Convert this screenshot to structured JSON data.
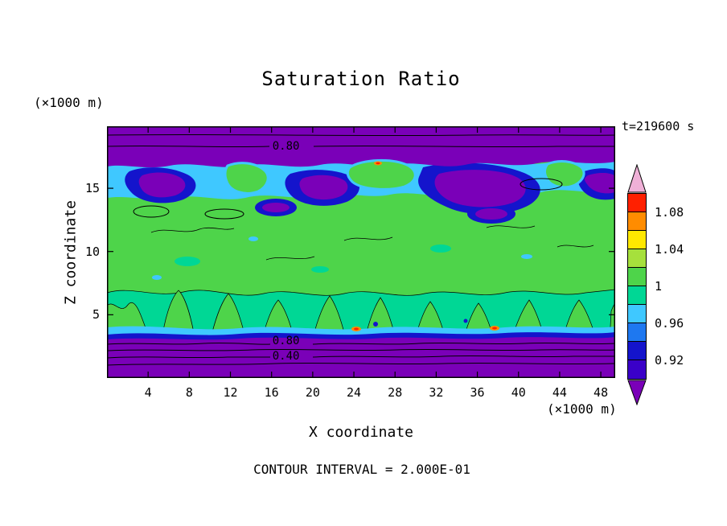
{
  "chart_data": {
    "type": "heatmap",
    "style": "filled-contour",
    "title": "Saturation Ratio",
    "annotation_time": "t=219600 s",
    "xlabel": "X coordinate",
    "ylabel": "Z coordinate",
    "x_axis_unit": "(×1000 m)",
    "y_axis_unit": "(×1000 m)",
    "footer_note": "CONTOUR INTERVAL = 2.000E-01",
    "contour_interval": 0.2,
    "xlim": [
      0,
      49.4
    ],
    "ylim": [
      0,
      19.9
    ],
    "x_ticks": [
      4,
      8,
      12,
      16,
      20,
      24,
      28,
      32,
      36,
      40,
      44,
      48
    ],
    "y_ticks": [
      5,
      10,
      15
    ],
    "grid": false,
    "legend_position": "right-colorbar",
    "contour_labels": [
      {
        "text": "0.80",
        "x": 17.4,
        "z": 18.3
      },
      {
        "text": "0.80",
        "x": 17.4,
        "z": 2.9
      },
      {
        "text": "0.40",
        "x": 17.4,
        "z": 1.7
      }
    ],
    "colorbar": {
      "range": [
        0.9,
        1.1
      ],
      "boundary_step": 0.02,
      "ticks": [
        {
          "label": "1.08",
          "boundary_index": 1
        },
        {
          "label": "1.04",
          "boundary_index": 3
        },
        {
          "label": "1",
          "boundary_index": 5
        },
        {
          "label": "0.96",
          "boundary_index": 7
        },
        {
          "label": "0.92",
          "boundary_index": 9
        }
      ],
      "segments_top_to_bottom": [
        "#ff2000",
        "#ff8c00",
        "#ffe800",
        "#a6e03c",
        "#4ed44a",
        "#00d795",
        "#3fc8ff",
        "#1e78f0",
        "#1414cc",
        "#3a00c8"
      ],
      "over_color": "#efb0d7",
      "under_color": "#7a00b8"
    },
    "palette": {
      "purple": "#7a00b8",
      "navy": "#1414cc",
      "cyan": "#3fc8ff",
      "teal_green": "#00d795",
      "green": "#4ed44a",
      "orange": "#ff8c00",
      "red": "#ff2000"
    },
    "field_summary": {
      "background_value": "≈ 1.0 (green) over most of the interior",
      "layers_bottom_to_top": [
        {
          "z_range_km": [
            0,
            3.2
          ],
          "description": "sub-saturated surface layer (purple), saturation ratio falls below 0.8 then 0.4; wavy labelled contours 0.80 and 0.40"
        },
        {
          "z_range_km": [
            3.2,
            13.5
          ],
          "description": "near-saturated interior ≈ 0.98–1.02: green field with teal plume gaps, rising finger structures, occasional cyan flecks, tiny navy dots and orange/red specks near z≈4"
        },
        {
          "z_range_km": [
            13.5,
            17
          ],
          "description": "turbulent cloud-top band: cyan, dark blue and purple patches (0.86–0.96) mixed with green islands, small red specks and closed black contours"
        },
        {
          "z_range_km": [
            17,
            19.9
          ],
          "description": "dry upper layer below 0.8 (purple) with labelled contour 0.80"
        }
      ]
    }
  }
}
